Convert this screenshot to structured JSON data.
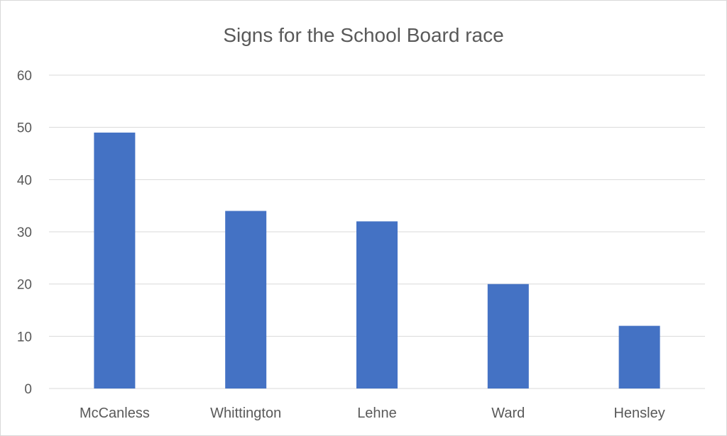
{
  "chart_data": {
    "type": "bar",
    "title": "Signs for the School Board race",
    "categories": [
      "McCanless",
      "Whittington",
      "Lehne",
      "Ward",
      "Hensley"
    ],
    "values": [
      49,
      34,
      32,
      20,
      12
    ],
    "ylim": [
      0,
      60
    ],
    "yticks": [
      0,
      10,
      20,
      30,
      40,
      50,
      60
    ],
    "xlabel": "",
    "ylabel": "",
    "grid": true,
    "legend": "none",
    "bar_color": "#4472C4",
    "grid_color": "#d9d9d9",
    "text_color": "#595959"
  }
}
